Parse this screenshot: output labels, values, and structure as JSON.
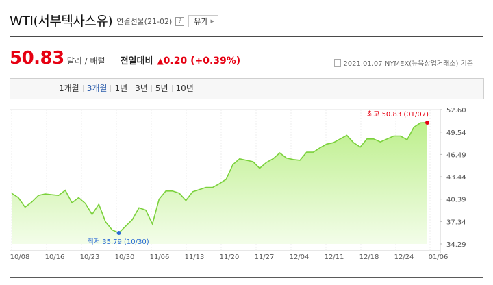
{
  "header": {
    "title": "WTI(서부텍사스유)",
    "subtitle": "연결선물(21-02)",
    "help": "?",
    "category": "유가"
  },
  "quote": {
    "price": "50.83",
    "unit": "달러 / 배럴",
    "prev_label": "전일대비",
    "change": "0.20 (+0.39%)",
    "date_source": "2021.01.07 NYMEX(뉴욕상업거래소) 기준"
  },
  "periods": [
    "1개월",
    "3개월",
    "1년",
    "3년",
    "5년",
    "10년"
  ],
  "active_period": "3개월",
  "colors": {
    "line": "#7bd13c",
    "accent": "#e60012",
    "low": "#2b6bd6",
    "area_top": "#bdef8c"
  },
  "chart_data": {
    "type": "area",
    "x_ticks": [
      "10/08",
      "10/16",
      "10/23",
      "10/30",
      "11/06",
      "11/13",
      "11/20",
      "11/27",
      "12/04",
      "12/11",
      "12/18",
      "12/24",
      "01/06"
    ],
    "y_ticks": [
      "52.60",
      "49.54",
      "46.49",
      "43.44",
      "40.39",
      "37.34",
      "34.29"
    ],
    "ylim": [
      34.29,
      52.6
    ],
    "grid": "vertical",
    "values": [
      41.2,
      40.6,
      39.3,
      40.0,
      40.9,
      41.1,
      41.0,
      40.9,
      41.6,
      39.9,
      40.6,
      39.8,
      38.3,
      39.7,
      37.3,
      36.2,
      35.79,
      36.7,
      37.6,
      39.2,
      38.9,
      37.0,
      40.4,
      41.5,
      41.5,
      41.2,
      40.2,
      41.4,
      41.7,
      42.0,
      42.0,
      42.5,
      43.1,
      45.1,
      45.9,
      45.7,
      45.5,
      44.6,
      45.4,
      45.9,
      46.7,
      46.0,
      45.8,
      45.7,
      46.8,
      46.8,
      47.4,
      47.9,
      48.1,
      48.6,
      49.1,
      48.1,
      47.5,
      48.6,
      48.6,
      48.2,
      48.6,
      49.0,
      49.0,
      48.5,
      50.2,
      50.8,
      50.83
    ],
    "max": {
      "label": "최고 50.83 (01/07)",
      "value": 50.83
    },
    "min": {
      "label": "최저 35.79 (10/30)",
      "value": 35.79
    }
  }
}
